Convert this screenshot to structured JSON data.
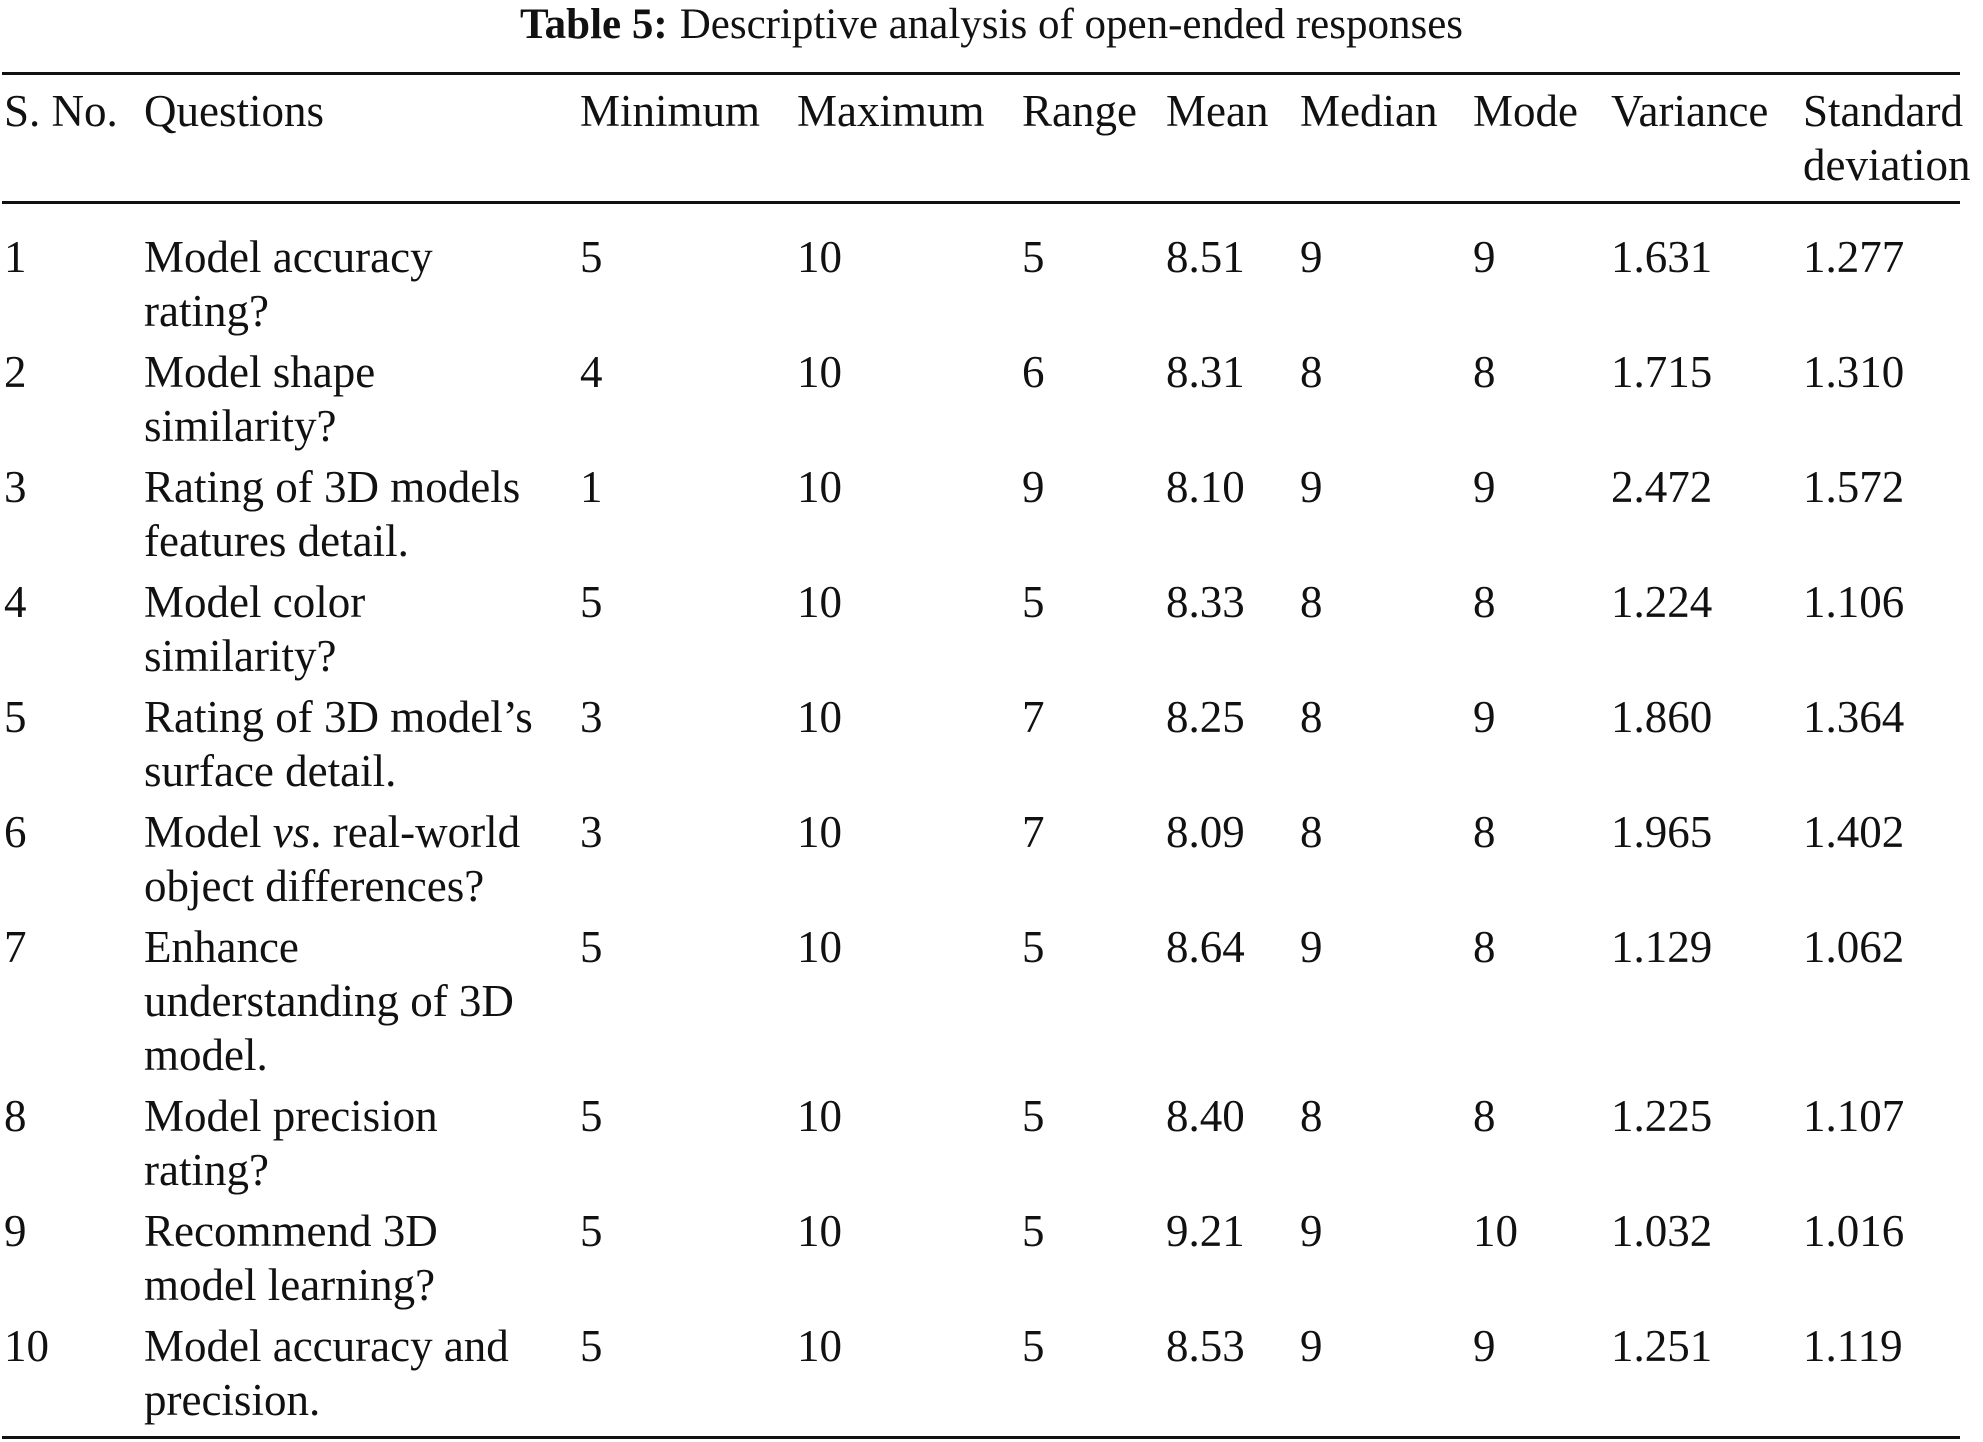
{
  "caption": {
    "label": "Table 5:",
    "text": "Descriptive analysis of open-ended responses"
  },
  "columns": {
    "sno": "S. No.",
    "questions": "Questions",
    "minimum": "Minimum",
    "maximum": "Maximum",
    "range": "Range",
    "mean": "Mean",
    "median": "Median",
    "mode": "Mode",
    "variance": "Variance",
    "sd_line1": "Standard",
    "sd_line2": "deviation"
  },
  "rows": [
    {
      "sno": "1",
      "question_lines": [
        "Model accuracy",
        "rating?"
      ],
      "minimum": "5",
      "maximum": "10",
      "range": "5",
      "mean": "8.51",
      "median": "9",
      "mode": "9",
      "variance": "1.631",
      "sd": "1.277"
    },
    {
      "sno": "2",
      "question_lines": [
        "Model shape",
        "similarity?"
      ],
      "minimum": "4",
      "maximum": "10",
      "range": "6",
      "mean": "8.31",
      "median": "8",
      "mode": "8",
      "variance": "1.715",
      "sd": "1.310"
    },
    {
      "sno": "3",
      "question_lines": [
        "Rating of 3D models",
        "features detail."
      ],
      "minimum": "1",
      "maximum": "10",
      "range": "9",
      "mean": "8.10",
      "median": "9",
      "mode": "9",
      "variance": "2.472",
      "sd": "1.572"
    },
    {
      "sno": "4",
      "question_lines": [
        "Model color",
        "similarity?"
      ],
      "minimum": "5",
      "maximum": "10",
      "range": "5",
      "mean": "8.33",
      "median": "8",
      "mode": "8",
      "variance": "1.224",
      "sd": "1.106"
    },
    {
      "sno": "5",
      "question_lines": [
        "Rating of 3D model’s",
        "surface detail."
      ],
      "minimum": "3",
      "maximum": "10",
      "range": "7",
      "mean": "8.25",
      "median": "8",
      "mode": "9",
      "variance": "1.860",
      "sd": "1.364"
    },
    {
      "sno": "6",
      "question_lines": [
        "Model vs. real-world",
        "object differences?"
      ],
      "minimum": "3",
      "maximum": "10",
      "range": "7",
      "mean": "8.09",
      "median": "8",
      "mode": "8",
      "variance": "1.965",
      "sd": "1.402"
    },
    {
      "sno": "7",
      "question_lines": [
        "Enhance",
        "understanding of 3D",
        "model."
      ],
      "minimum": "5",
      "maximum": "10",
      "range": "5",
      "mean": "8.64",
      "median": "9",
      "mode": "8",
      "variance": "1.129",
      "sd": "1.062"
    },
    {
      "sno": "8",
      "question_lines": [
        "Model precision",
        "rating?"
      ],
      "minimum": "5",
      "maximum": "10",
      "range": "5",
      "mean": "8.40",
      "median": "8",
      "mode": "8",
      "variance": "1.225",
      "sd": "1.107"
    },
    {
      "sno": "9",
      "question_lines": [
        "Recommend 3D",
        "model learning?"
      ],
      "minimum": "5",
      "maximum": "10",
      "range": "5",
      "mean": "9.21",
      "median": "9",
      "mode": "10",
      "variance": "1.032",
      "sd": "1.016"
    },
    {
      "sno": "10",
      "question_lines": [
        "Model accuracy and",
        "precision."
      ],
      "minimum": "5",
      "maximum": "10",
      "range": "5",
      "mean": "8.53",
      "median": "9",
      "mode": "9",
      "variance": "1.251",
      "sd": "1.119"
    }
  ]
}
